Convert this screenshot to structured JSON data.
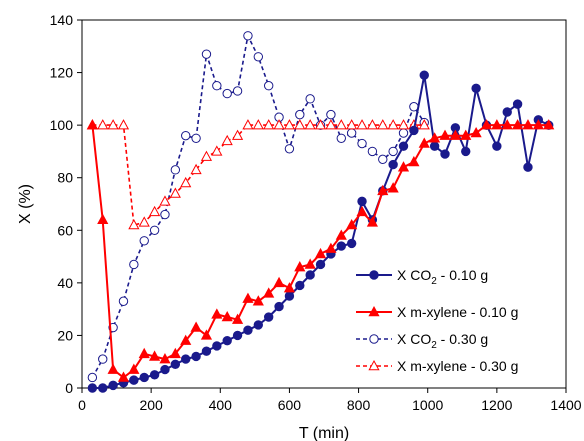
{
  "chart_data": {
    "type": "line",
    "xlabel": "T (min)",
    "ylabel": "X (%)",
    "xlim": [
      0,
      1400
    ],
    "ylim": [
      0,
      140
    ],
    "xticks": [
      0,
      200,
      400,
      600,
      800,
      1000,
      1200,
      1400
    ],
    "yticks": [
      0,
      20,
      40,
      60,
      80,
      100,
      120,
      140
    ],
    "grid": false,
    "legend_position": "bottom-right",
    "series": [
      {
        "name": "X CO₂ - 0.10 g",
        "legend_main": "X CO",
        "legend_sub": "2",
        "legend_tail": " - 0.10 g",
        "color": "#1a1a8c",
        "line_style": "solid",
        "marker": "filled-circle",
        "x": [
          30,
          60,
          90,
          120,
          150,
          180,
          210,
          240,
          270,
          300,
          330,
          360,
          390,
          420,
          450,
          480,
          510,
          540,
          570,
          600,
          630,
          660,
          690,
          720,
          750,
          780,
          810,
          840,
          870,
          900,
          930,
          960,
          990,
          1020,
          1050,
          1080,
          1110,
          1140,
          1170,
          1200,
          1230,
          1260,
          1290,
          1320,
          1350
        ],
        "y": [
          0,
          0,
          1,
          2,
          3,
          4,
          5,
          7,
          9,
          11,
          12,
          14,
          16,
          18,
          20,
          22,
          24,
          27,
          31,
          35,
          39,
          43,
          47,
          51,
          54,
          55,
          71,
          64,
          75,
          85,
          92,
          98,
          119,
          92,
          89,
          99,
          90,
          114,
          100,
          92,
          105,
          108,
          84,
          102,
          100
        ]
      },
      {
        "name": "X m-xylene - 0.10 g",
        "legend_main": "X m-xylene - 0.10 g",
        "legend_sub": "",
        "legend_tail": "",
        "color": "#ff0000",
        "line_style": "solid",
        "marker": "filled-triangle",
        "x": [
          30,
          60,
          90,
          120,
          150,
          180,
          210,
          240,
          270,
          300,
          330,
          360,
          390,
          420,
          450,
          480,
          510,
          540,
          570,
          600,
          630,
          660,
          690,
          720,
          750,
          780,
          810,
          840,
          870,
          900,
          930,
          960,
          990,
          1020,
          1050,
          1080,
          1110,
          1140,
          1170,
          1200,
          1230,
          1260,
          1290,
          1320,
          1350
        ],
        "y": [
          100,
          64,
          7,
          4,
          7,
          13,
          12,
          11,
          13,
          18,
          23,
          20,
          28,
          27,
          26,
          34,
          33,
          36,
          40,
          38,
          46,
          47,
          51,
          53,
          58,
          62,
          67,
          63,
          75,
          76,
          84,
          86,
          93,
          95,
          96,
          96,
          96,
          97,
          100,
          100,
          100,
          100,
          100,
          100,
          100
        ]
      },
      {
        "name": "X CO₂ - 0.30 g",
        "legend_main": "X CO",
        "legend_sub": "2",
        "legend_tail": " - 0.30 g",
        "color": "#1a1a8c",
        "line_style": "dashed",
        "marker": "open-circle",
        "x": [
          30,
          60,
          90,
          120,
          150,
          180,
          210,
          240,
          270,
          300,
          330,
          360,
          390,
          420,
          450,
          480,
          510,
          540,
          570,
          600,
          630,
          660,
          690,
          720,
          750,
          780,
          810,
          840,
          870,
          900,
          930,
          960,
          990
        ],
        "y": [
          4,
          11,
          23,
          33,
          47,
          56,
          60,
          66,
          83,
          96,
          95,
          127,
          115,
          112,
          113,
          134,
          126,
          115,
          103,
          91,
          104,
          110,
          100,
          104,
          95,
          97,
          93,
          90,
          87,
          90,
          97,
          107,
          101
        ]
      },
      {
        "name": "X m-xylene - 0.30 g",
        "legend_main": "X m-xylene - 0.30 g",
        "legend_sub": "",
        "legend_tail": "",
        "color": "#ff0000",
        "line_style": "dashed",
        "marker": "open-triangle",
        "x": [
          30,
          60,
          90,
          120,
          150,
          180,
          210,
          240,
          270,
          300,
          330,
          360,
          390,
          420,
          450,
          480,
          510,
          540,
          570,
          600,
          630,
          660,
          690,
          720,
          750,
          780,
          810,
          840,
          870,
          900,
          930,
          960,
          990
        ],
        "y": [
          100,
          100,
          100,
          100,
          62,
          63,
          67,
          71,
          74,
          78,
          83,
          88,
          90,
          94,
          96,
          100,
          100,
          100,
          100,
          100,
          100,
          100,
          100,
          100,
          100,
          100,
          100,
          100,
          100,
          100,
          100,
          100,
          100
        ]
      }
    ]
  }
}
